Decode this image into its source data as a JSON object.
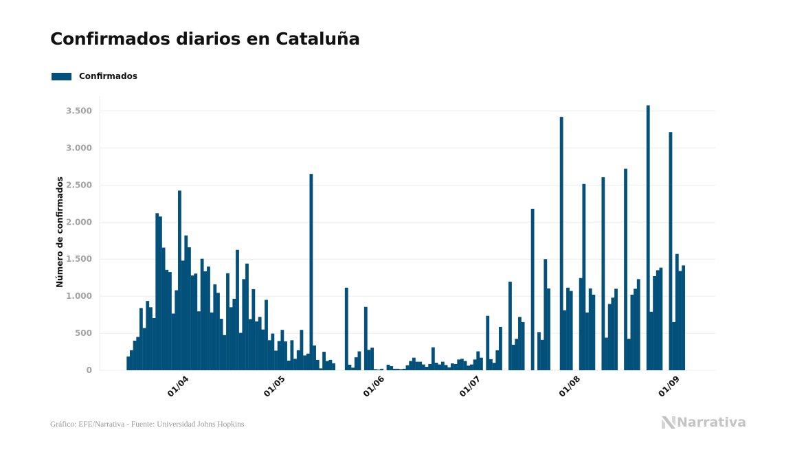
{
  "header": {
    "title": "Confirmados diarios en Cataluña"
  },
  "legend": {
    "items": [
      {
        "label": "Confirmados",
        "color": "#03517a"
      }
    ]
  },
  "footer": {
    "source": "Gráfico: EFE/Narrativa - Fuente: Universidad Johns Hopkins",
    "brand": "Narrativa",
    "brand_icon": "narrativa-logo-icon"
  },
  "chart_data": {
    "type": "bar",
    "title": "Confirmados diarios en Cataluña",
    "xlabel": "",
    "ylabel": "Número de confirmados",
    "ylim": [
      0,
      3500
    ],
    "yticks": [
      0,
      500,
      1000,
      1500,
      2000,
      2500,
      3000,
      3500
    ],
    "ytick_labels": [
      "0",
      "500",
      "1.000",
      "1.500",
      "2.000",
      "2.500",
      "3.000",
      "3.500"
    ],
    "xtick_labels": [
      "01/04",
      "01/05",
      "01/06",
      "01/07",
      "01/08",
      "01/09"
    ],
    "xtick_dates": [
      "2020-04-01",
      "2020-05-01",
      "2020-06-01",
      "2020-07-01",
      "2020-08-01",
      "2020-09-01"
    ],
    "grid": true,
    "legend_position": "top-left",
    "start_date": "2020-03-13",
    "end_date": "2020-09-02",
    "bar_color": "#03517a",
    "series": [
      {
        "name": "Confirmados",
        "values": [
          186,
          270,
          400,
          450,
          840,
          570,
          935,
          850,
          705,
          2120,
          2075,
          1655,
          1355,
          1325,
          765,
          1080,
          2425,
          1480,
          1820,
          1660,
          1280,
          1305,
          795,
          1505,
          1335,
          1400,
          780,
          1160,
          1045,
          695,
          475,
          1310,
          850,
          965,
          1625,
          505,
          1230,
          1440,
          690,
          1095,
          660,
          720,
          550,
          950,
          405,
          495,
          265,
          395,
          545,
          390,
          130,
          405,
          155,
          270,
          545,
          200,
          225,
          2650,
          335,
          140,
          25,
          250,
          125,
          140,
          95,
          0,
          0,
          0,
          1115,
          75,
          35,
          175,
          255,
          0,
          855,
          275,
          305,
          15,
          10,
          20,
          0,
          75,
          55,
          20,
          20,
          15,
          20,
          68,
          125,
          170,
          115,
          115,
          78,
          46,
          84,
          310,
          102,
          78,
          115,
          71,
          40,
          93,
          84,
          145,
          155,
          125,
          62,
          78,
          145,
          255,
          170,
          0,
          735,
          150,
          100,
          270,
          585,
          0,
          0,
          1195,
          345,
          425,
          720,
          650,
          0,
          0,
          2180,
          0,
          515,
          410,
          1500,
          1105,
          0,
          0,
          0,
          3420,
          810,
          1115,
          1070,
          0,
          0,
          1245,
          2515,
          780,
          1105,
          1020,
          0,
          0,
          2605,
          440,
          895,
          980,
          1100,
          0,
          0,
          2720,
          425,
          1020,
          1100,
          1230,
          0,
          0,
          3575,
          790,
          1270,
          1350,
          1385,
          0,
          0,
          3215,
          650,
          1570,
          1340,
          1415
        ]
      }
    ]
  }
}
